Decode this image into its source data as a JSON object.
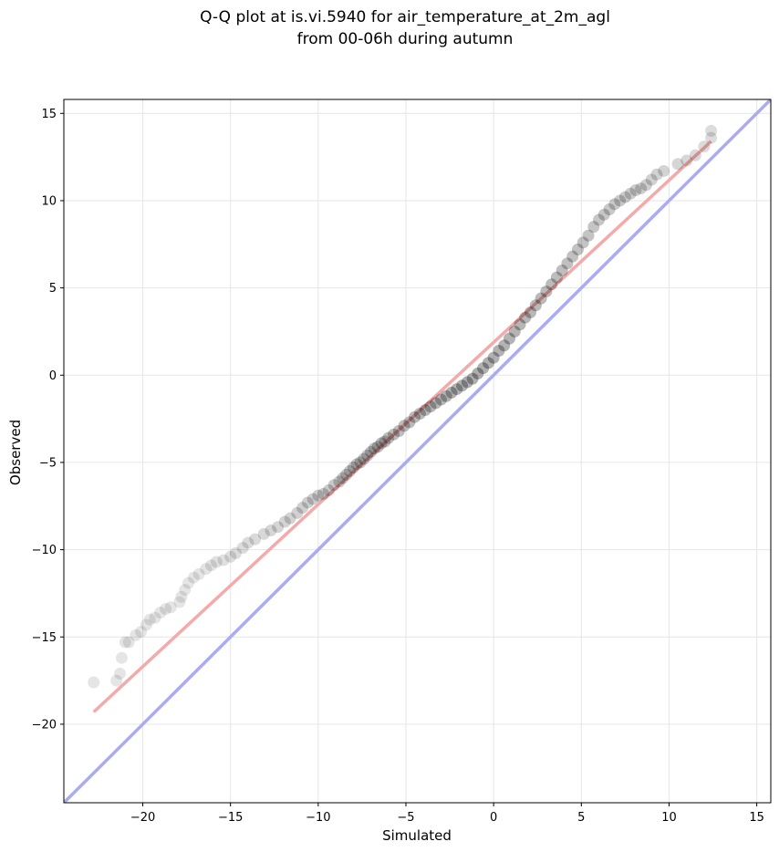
{
  "chart_data": {
    "type": "scatter",
    "title": [
      "Q-Q plot at is.vi.5940 for air_temperature_at_2m_agl",
      "from 00-06h during autumn"
    ],
    "xlabel": "Simulated",
    "ylabel": "Observed",
    "xlim": [
      -24.5,
      15.8
    ],
    "ylim": [
      -24.5,
      15.8
    ],
    "xticks": [
      -20,
      -15,
      -10,
      -5,
      0,
      5,
      10,
      15
    ],
    "yticks": [
      -20,
      -15,
      -10,
      -5,
      0,
      5,
      10,
      15
    ],
    "xtick_labels": [
      "−20",
      "−15",
      "−10",
      "−5",
      "0",
      "5",
      "10",
      "15"
    ],
    "ytick_labels": [
      "−20",
      "−15",
      "−10",
      "−5",
      "0",
      "5",
      "10",
      "15"
    ],
    "grid": true,
    "identity_line": {
      "x": [
        -24.5,
        15.8
      ],
      "y": [
        -24.5,
        15.8
      ],
      "color": "#aaaaf5"
    },
    "fit_line": {
      "x": [
        -22.8,
        12.4
      ],
      "y": [
        -19.3,
        13.4
      ],
      "color": "#f5aaaa"
    },
    "marker_color": "#000000",
    "series": [
      {
        "points": [
          [
            -22.8,
            -17.6
          ],
          [
            -21.5,
            -17.5
          ],
          [
            -21.3,
            -17.1
          ],
          [
            -21.2,
            -16.2
          ],
          [
            -21.0,
            -15.3
          ],
          [
            -20.8,
            -15.3
          ],
          [
            -20.4,
            -14.9
          ],
          [
            -20.1,
            -14.7
          ],
          [
            -19.8,
            -14.3
          ],
          [
            -19.6,
            -14.0
          ],
          [
            -19.3,
            -13.9
          ],
          [
            -19.0,
            -13.6
          ],
          [
            -18.7,
            -13.4
          ],
          [
            -18.4,
            -13.3
          ],
          [
            -17.9,
            -13.0
          ],
          [
            -17.8,
            -12.7
          ],
          [
            -17.6,
            -12.3
          ],
          [
            -17.4,
            -11.9
          ],
          [
            -17.1,
            -11.6
          ],
          [
            -16.8,
            -11.4
          ],
          [
            -16.4,
            -11.1
          ],
          [
            -16.1,
            -10.9
          ],
          [
            -15.8,
            -10.7
          ],
          [
            -15.4,
            -10.6
          ],
          [
            -15.0,
            -10.4
          ],
          [
            -14.7,
            -10.2
          ],
          [
            -14.3,
            -9.9
          ],
          [
            -14.0,
            -9.6
          ],
          [
            -13.6,
            -9.4
          ],
          [
            -13.1,
            -9.1
          ],
          [
            -12.7,
            -8.9
          ],
          [
            -12.3,
            -8.7
          ],
          [
            -11.9,
            -8.4
          ],
          [
            -11.6,
            -8.2
          ],
          [
            -11.2,
            -7.9
          ],
          [
            -10.9,
            -7.6
          ],
          [
            -10.6,
            -7.3
          ],
          [
            -10.3,
            -7.1
          ],
          [
            -10.0,
            -6.9
          ],
          [
            -9.7,
            -6.8
          ],
          [
            -9.4,
            -6.6
          ],
          [
            -9.1,
            -6.3
          ],
          [
            -8.8,
            -6.1
          ],
          [
            -8.6,
            -5.9
          ],
          [
            -8.4,
            -5.7
          ],
          [
            -8.2,
            -5.5
          ],
          [
            -8.0,
            -5.3
          ],
          [
            -7.8,
            -5.1
          ],
          [
            -7.6,
            -5.0
          ],
          [
            -7.4,
            -4.8
          ],
          [
            -7.2,
            -4.6
          ],
          [
            -7.0,
            -4.4
          ],
          [
            -6.8,
            -4.2
          ],
          [
            -6.6,
            -4.1
          ],
          [
            -6.4,
            -3.9
          ],
          [
            -6.2,
            -3.8
          ],
          [
            -6.0,
            -3.6
          ],
          [
            -5.7,
            -3.4
          ],
          [
            -5.4,
            -3.2
          ],
          [
            -5.1,
            -2.9
          ],
          [
            -4.8,
            -2.7
          ],
          [
            -4.5,
            -2.4
          ],
          [
            -4.2,
            -2.2
          ],
          [
            -3.9,
            -2.0
          ],
          [
            -3.6,
            -1.8
          ],
          [
            -3.3,
            -1.6
          ],
          [
            -3.0,
            -1.4
          ],
          [
            -2.7,
            -1.2
          ],
          [
            -2.4,
            -1.0
          ],
          [
            -2.1,
            -0.8
          ],
          [
            -1.8,
            -0.6
          ],
          [
            -1.5,
            -0.4
          ],
          [
            -1.2,
            -0.2
          ],
          [
            -0.9,
            0.1
          ],
          [
            -0.6,
            0.4
          ],
          [
            -0.3,
            0.7
          ],
          [
            0.0,
            1.0
          ],
          [
            0.3,
            1.4
          ],
          [
            0.6,
            1.7
          ],
          [
            0.9,
            2.1
          ],
          [
            1.2,
            2.5
          ],
          [
            1.5,
            2.9
          ],
          [
            1.8,
            3.3
          ],
          [
            2.1,
            3.6
          ],
          [
            2.4,
            4.0
          ],
          [
            2.7,
            4.4
          ],
          [
            3.0,
            4.8
          ],
          [
            3.3,
            5.2
          ],
          [
            3.6,
            5.6
          ],
          [
            3.9,
            6.0
          ],
          [
            4.2,
            6.4
          ],
          [
            4.5,
            6.8
          ],
          [
            4.8,
            7.2
          ],
          [
            5.1,
            7.6
          ],
          [
            5.4,
            8.0
          ],
          [
            5.7,
            8.5
          ],
          [
            6.0,
            8.9
          ],
          [
            6.3,
            9.2
          ],
          [
            6.6,
            9.5
          ],
          [
            6.9,
            9.8
          ],
          [
            7.2,
            10.0
          ],
          [
            7.5,
            10.2
          ],
          [
            7.8,
            10.4
          ],
          [
            8.1,
            10.6
          ],
          [
            8.4,
            10.7
          ],
          [
            8.7,
            10.9
          ],
          [
            9.0,
            11.2
          ],
          [
            9.3,
            11.5
          ],
          [
            9.7,
            11.7
          ],
          [
            10.5,
            12.1
          ],
          [
            11.0,
            12.3
          ],
          [
            11.5,
            12.6
          ],
          [
            12.0,
            13.1
          ],
          [
            12.4,
            13.6
          ],
          [
            12.4,
            14.0
          ]
        ]
      }
    ]
  }
}
